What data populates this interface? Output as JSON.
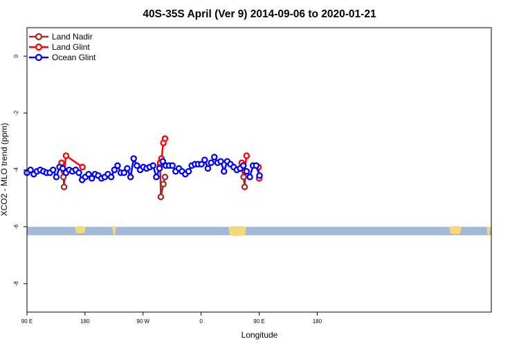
{
  "chart_data": {
    "type": "line",
    "title": "40S-35S April (Ver 9)   2014-09-06 to 2020-01-21",
    "xlabel": "Longitude",
    "ylabel": "XCO2 - MLO trend (ppm)",
    "xlim": [
      90,
      450
    ],
    "ylim": [
      -9,
      1
    ],
    "xticks": [
      {
        "value": 90,
        "label": "90 E"
      },
      {
        "value": 180,
        "label": "180"
      },
      {
        "value": 270,
        "label": "90 W"
      },
      {
        "value": 360,
        "label": "0"
      },
      {
        "value": 450,
        "label": "90 E"
      },
      {
        "value": 540,
        "label": "180"
      }
    ],
    "yticks": [
      {
        "value": 0,
        "label": "0"
      },
      {
        "value": -2,
        "label": "-2"
      },
      {
        "value": -4,
        "label": "-4"
      },
      {
        "value": -6,
        "label": "-6"
      },
      {
        "value": -8,
        "label": "-8"
      }
    ],
    "legend_position": "top-left",
    "land_band": {
      "y_top": -6.0,
      "y_bottom": -6.3,
      "ocean_color": "#a3b8d8",
      "land_color": "#f5d87a"
    },
    "series": [
      {
        "name": "Land Nadir",
        "color": "#a52a2a",
        "segments": [
          [
            [
              146.5,
              -4.25
            ],
            [
              147.5,
              -4.6
            ],
            [
              149,
              -4.05
            ]
          ],
          [
            [
              296.5,
              -3.85
            ],
            [
              297.5,
              -4.95
            ],
            [
              301.5,
              -4.5
            ],
            [
              304,
              -4.25
            ]
          ],
          [
            [
              426,
              -4.25
            ],
            [
              427.5,
              -4.6
            ],
            [
              429,
              -4.05
            ]
          ]
        ]
      },
      {
        "name": "Land Glint",
        "color": "#ff0000",
        "segments": [
          [
            [
              143.5,
              -3.75
            ],
            [
              147.5,
              -4.05
            ],
            [
              150.5,
              -3.5
            ],
            [
              176,
              -3.9
            ]
          ],
          [
            [
              296.5,
              -3.75
            ],
            [
              298.5,
              -3.6
            ],
            [
              301.5,
              -3.05
            ],
            [
              304,
              -2.9
            ]
          ],
          [
            [
              423,
              -3.75
            ],
            [
              427.5,
              -4.05
            ],
            [
              430.5,
              -3.5
            ]
          ],
          [
            [
              449,
              -3.9
            ],
            [
              450,
              -4.3
            ]
          ]
        ]
      },
      {
        "name": "Ocean Glint",
        "color": "#0000ff",
        "segments": [
          [
            [
              90,
              -4.1
            ],
            [
              95.5,
              -4.0
            ],
            [
              100.5,
              -4.15
            ],
            [
              105.5,
              -4.05
            ],
            [
              110.5,
              -4.0
            ],
            [
              115.5,
              -4.05
            ],
            [
              120.5,
              -4.1
            ],
            [
              125.5,
              -4.1
            ],
            [
              130.5,
              -4.0
            ],
            [
              135.5,
              -4.25
            ],
            [
              140.5,
              -3.9
            ],
            [
              145.5,
              -3.95
            ],
            [
              150.5,
              -4.1
            ],
            [
              155.5,
              -4.0
            ],
            [
              160.5,
              -4.05
            ],
            [
              165.5,
              -4.0
            ],
            [
              170.5,
              -4.1
            ],
            [
              175.5,
              -4.35
            ],
            [
              180.5,
              -4.25
            ],
            [
              185.5,
              -4.15
            ],
            [
              190.5,
              -4.3
            ],
            [
              195.5,
              -4.15
            ],
            [
              200.5,
              -4.2
            ],
            [
              205.5,
              -4.3
            ],
            [
              210.5,
              -4.25
            ],
            [
              215.5,
              -4.15
            ],
            [
              220.5,
              -4.25
            ],
            [
              225.5,
              -4.0
            ],
            [
              230.5,
              -3.85
            ],
            [
              235.5,
              -4.1
            ],
            [
              240.5,
              -4.1
            ],
            [
              245.5,
              -3.95
            ],
            [
              250.5,
              -4.25
            ],
            [
              255.5,
              -3.6
            ],
            [
              260.5,
              -3.85
            ],
            [
              265.5,
              -4.0
            ],
            [
              270.5,
              -3.9
            ],
            [
              275.5,
              -3.95
            ],
            [
              280.5,
              -3.9
            ],
            [
              285.5,
              -3.85
            ],
            [
              290.5,
              -4.25
            ],
            [
              295.5,
              -3.95
            ],
            [
              300.5,
              -3.7
            ],
            [
              305.5,
              -3.85
            ],
            [
              310.5,
              -3.85
            ],
            [
              315.5,
              -3.85
            ],
            [
              320.5,
              -4.05
            ],
            [
              325.5,
              -3.95
            ],
            [
              330.5,
              -4.05
            ],
            [
              335.5,
              -4.15
            ],
            [
              340.5,
              -4.05
            ],
            [
              345.5,
              -3.85
            ],
            [
              350.5,
              -3.8
            ],
            [
              355.5,
              -3.8
            ],
            [
              360.5,
              -3.8
            ],
            [
              365.5,
              -3.65
            ],
            [
              370.5,
              -3.95
            ],
            [
              375.5,
              -3.75
            ],
            [
              380.5,
              -3.55
            ],
            [
              385.5,
              -3.75
            ],
            [
              390.5,
              -3.7
            ],
            [
              395.5,
              -4.05
            ],
            [
              400.5,
              -3.7
            ],
            [
              405.5,
              -3.8
            ],
            [
              410.5,
              -3.9
            ],
            [
              415.5,
              -4.0
            ],
            [
              420.5,
              -3.95
            ],
            [
              425.5,
              -3.85
            ],
            [
              430.5,
              -4.05
            ],
            [
              435.5,
              -4.25
            ],
            [
              440.5,
              -3.85
            ],
            [
              445.5,
              -3.85
            ],
            [
              450.5,
              -4.2
            ]
          ]
        ]
      }
    ]
  }
}
